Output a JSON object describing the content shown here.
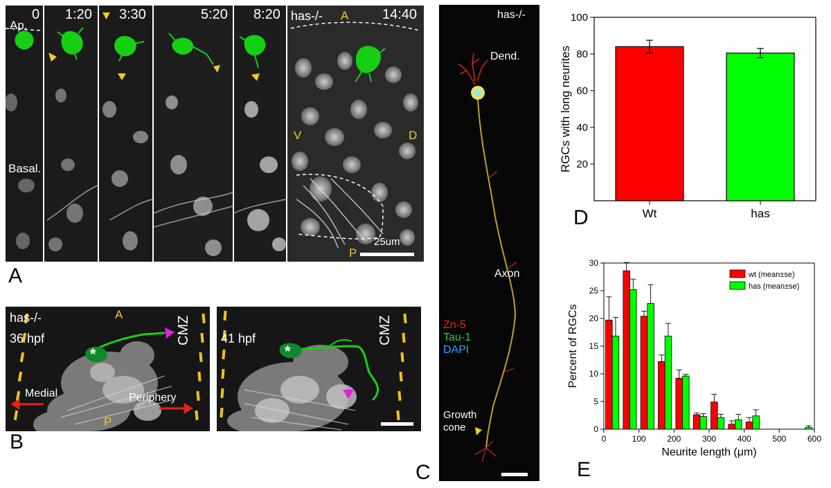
{
  "panel_letters": {
    "a": "A",
    "b": "B",
    "c": "C",
    "d": "D",
    "e": "E"
  },
  "panel_a": {
    "frames": [
      {
        "time": "0",
        "corner": "Ap.",
        "bottom": "Basal."
      },
      {
        "time": "1:20"
      },
      {
        "time": "3:30"
      },
      {
        "time": "5:20"
      },
      {
        "time": "8:20"
      },
      {
        "time": "14:40",
        "genotype": "has-/-",
        "dirs": {
          "a": "A",
          "v": "V",
          "d": "D",
          "p": "P"
        },
        "scale": "25um"
      }
    ]
  },
  "panel_b": {
    "left": {
      "genotype": "has-/-",
      "time": "36 hpf",
      "anterior": "A",
      "posterior": "P",
      "medial": "Medial",
      "periphery": "Periphery",
      "cmz": "CMZ",
      "star": "*"
    },
    "right": {
      "time": "41 hpf",
      "cmz": "CMZ",
      "star": "*"
    }
  },
  "panel_c": {
    "genotype": "has-/-",
    "dend": "Dend.",
    "axon": "Axon",
    "growth_cone": "Growth\ncone",
    "legend": [
      {
        "label": "Zn-5",
        "color": "#e8251e"
      },
      {
        "label": "Tau-1",
        "color": "#2ad12a"
      },
      {
        "label": "DAPI",
        "color": "#2fa0ff"
      }
    ]
  },
  "chart_data": [
    {
      "type": "bar",
      "categories": [
        "Wt",
        "has"
      ],
      "values": [
        84,
        80.5
      ],
      "errors": [
        3.5,
        2.5
      ],
      "colors": [
        "#ff0000",
        "#00ff00"
      ],
      "ylabel": "RGCs with long neurites",
      "ylim": [
        0,
        100
      ],
      "yticks": [
        20,
        40,
        60,
        80,
        100
      ]
    },
    {
      "type": "bar",
      "xlabel": "Neurite length (μm)",
      "ylabel": "Percent of RGCs",
      "xlim": [
        0,
        600
      ],
      "ylim": [
        0,
        30
      ],
      "xticks": [
        0,
        100,
        200,
        300,
        400,
        500,
        600
      ],
      "yticks": [
        0,
        5,
        10,
        15,
        20,
        25,
        30
      ],
      "legend_position": "top-right",
      "bin_width": 50,
      "series": [
        {
          "name": "wt (mean±se)",
          "color": "#ff0000",
          "x": [
            0,
            50,
            100,
            150,
            200,
            250,
            300,
            350,
            400,
            450,
            500,
            550
          ],
          "values": [
            19.7,
            28.6,
            20.4,
            12.2,
            9.2,
            2.6,
            4.9,
            0.9,
            1.3,
            0,
            0,
            0
          ],
          "errors": [
            4.2,
            1.5,
            0.9,
            1.2,
            1.5,
            0.3,
            1.4,
            0.6,
            0.8,
            0,
            0,
            0
          ]
        },
        {
          "name": "has (mean±se)",
          "color": "#00ff00",
          "x": [
            0,
            50,
            100,
            150,
            200,
            250,
            300,
            350,
            400,
            450,
            500,
            550
          ],
          "values": [
            16.8,
            25.2,
            22.7,
            16.8,
            9.6,
            2.3,
            2.1,
            1.7,
            2.4,
            0,
            0,
            0.3
          ],
          "errors": [
            3.4,
            1.9,
            3.4,
            2.3,
            0.3,
            0.5,
            0.6,
            1.0,
            1.1,
            0,
            0,
            0.3
          ]
        }
      ]
    }
  ]
}
